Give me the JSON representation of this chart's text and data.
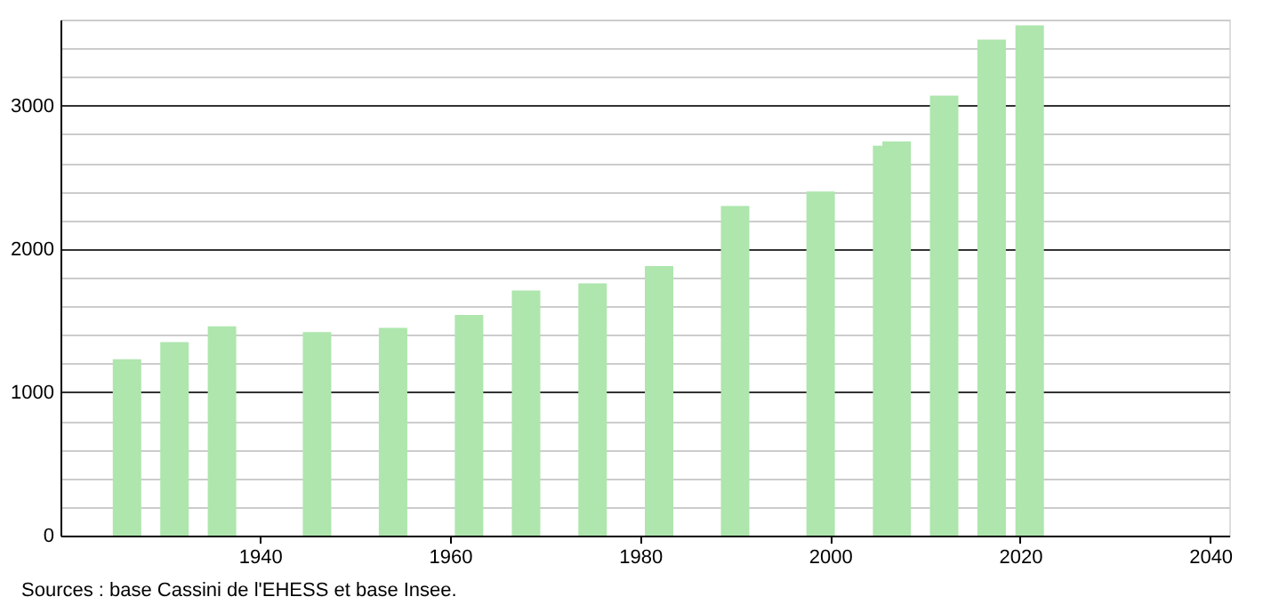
{
  "chart_data": {
    "type": "bar",
    "x": [
      1926,
      1931,
      1936,
      1946,
      1954,
      1962,
      1968,
      1975,
      1982,
      1990,
      1999,
      2006,
      2007,
      2012,
      2017,
      2021
    ],
    "values": [
      1230,
      1350,
      1460,
      1420,
      1450,
      1540,
      1710,
      1760,
      1880,
      2300,
      2400,
      2720,
      2750,
      3070,
      3460,
      3560
    ],
    "color": "#aee6ae",
    "xlim": [
      1919,
      2042
    ],
    "xticks": [
      1940,
      1960,
      1980,
      2000,
      2020,
      2040
    ],
    "ylim": [
      0,
      3600
    ],
    "yticks": [
      0,
      {
        "value": 200,
        "label": null
      },
      {
        "value": 400,
        "label": null
      },
      {
        "value": 600,
        "label": null
      },
      {
        "value": 800,
        "label": null
      },
      1000,
      {
        "value": 1200,
        "label": null
      },
      {
        "value": 1400,
        "label": null
      },
      {
        "value": 1600,
        "label": null
      },
      {
        "value": 1800,
        "label": null
      },
      2000,
      {
        "value": 2200,
        "label": null
      },
      {
        "value": 2400,
        "label": null
      },
      {
        "value": 2600,
        "label": null
      },
      {
        "value": 2800,
        "label": null
      },
      3000,
      {
        "value": 3200,
        "label": null
      },
      {
        "value": 3400,
        "label": null
      },
      {
        "value": 3600,
        "label": null
      }
    ],
    "grid": "y",
    "annotations": [
      "Sources : base Cassini de l'EHESS et base Insee."
    ]
  }
}
